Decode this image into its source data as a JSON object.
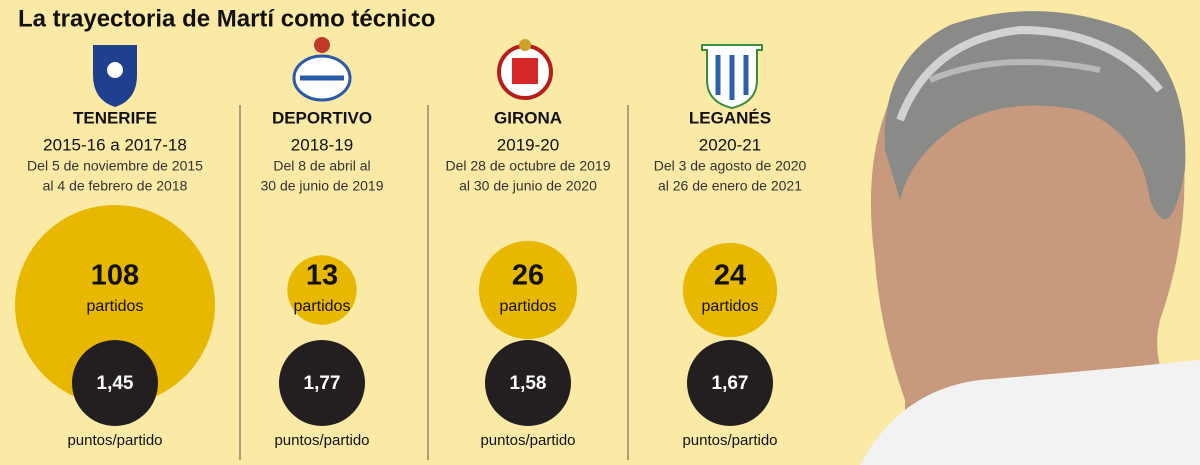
{
  "title": "La trayectoria de Martí como técnico",
  "teams": [
    {
      "name": "TENERIFE",
      "season": "2015-16 a 2017-18",
      "dates": [
        "Del 5 de noviembre de 2015",
        "al 4 de febrero de 2018"
      ],
      "matches": 108,
      "matches_label": "partidos",
      "points": "1,45",
      "points_label": "puntos/partido"
    },
    {
      "name": "DEPORTIVO",
      "season": "2018-19",
      "dates": [
        "Del 8 de abril al",
        "30 de junio de 2019"
      ],
      "matches": 13,
      "matches_label": "partidos",
      "points": "1,77",
      "points_label": "puntos/partido"
    },
    {
      "name": "GIRONA",
      "season": "2019-20",
      "dates": [
        "Del 28 de octubre de 2019",
        "al 30 de junio de 2020"
      ],
      "matches": 26,
      "matches_label": "partidos",
      "points": "1,58",
      "points_label": "puntos/partido"
    },
    {
      "name": "LEGANÉS",
      "season": "2020-21",
      "dates": [
        "Del 3 de agosto de 2020",
        "al 26 de enero de 2021"
      ],
      "matches": 24,
      "matches_label": "partidos",
      "points": "1,67",
      "points_label": "puntos/partido"
    }
  ]
}
